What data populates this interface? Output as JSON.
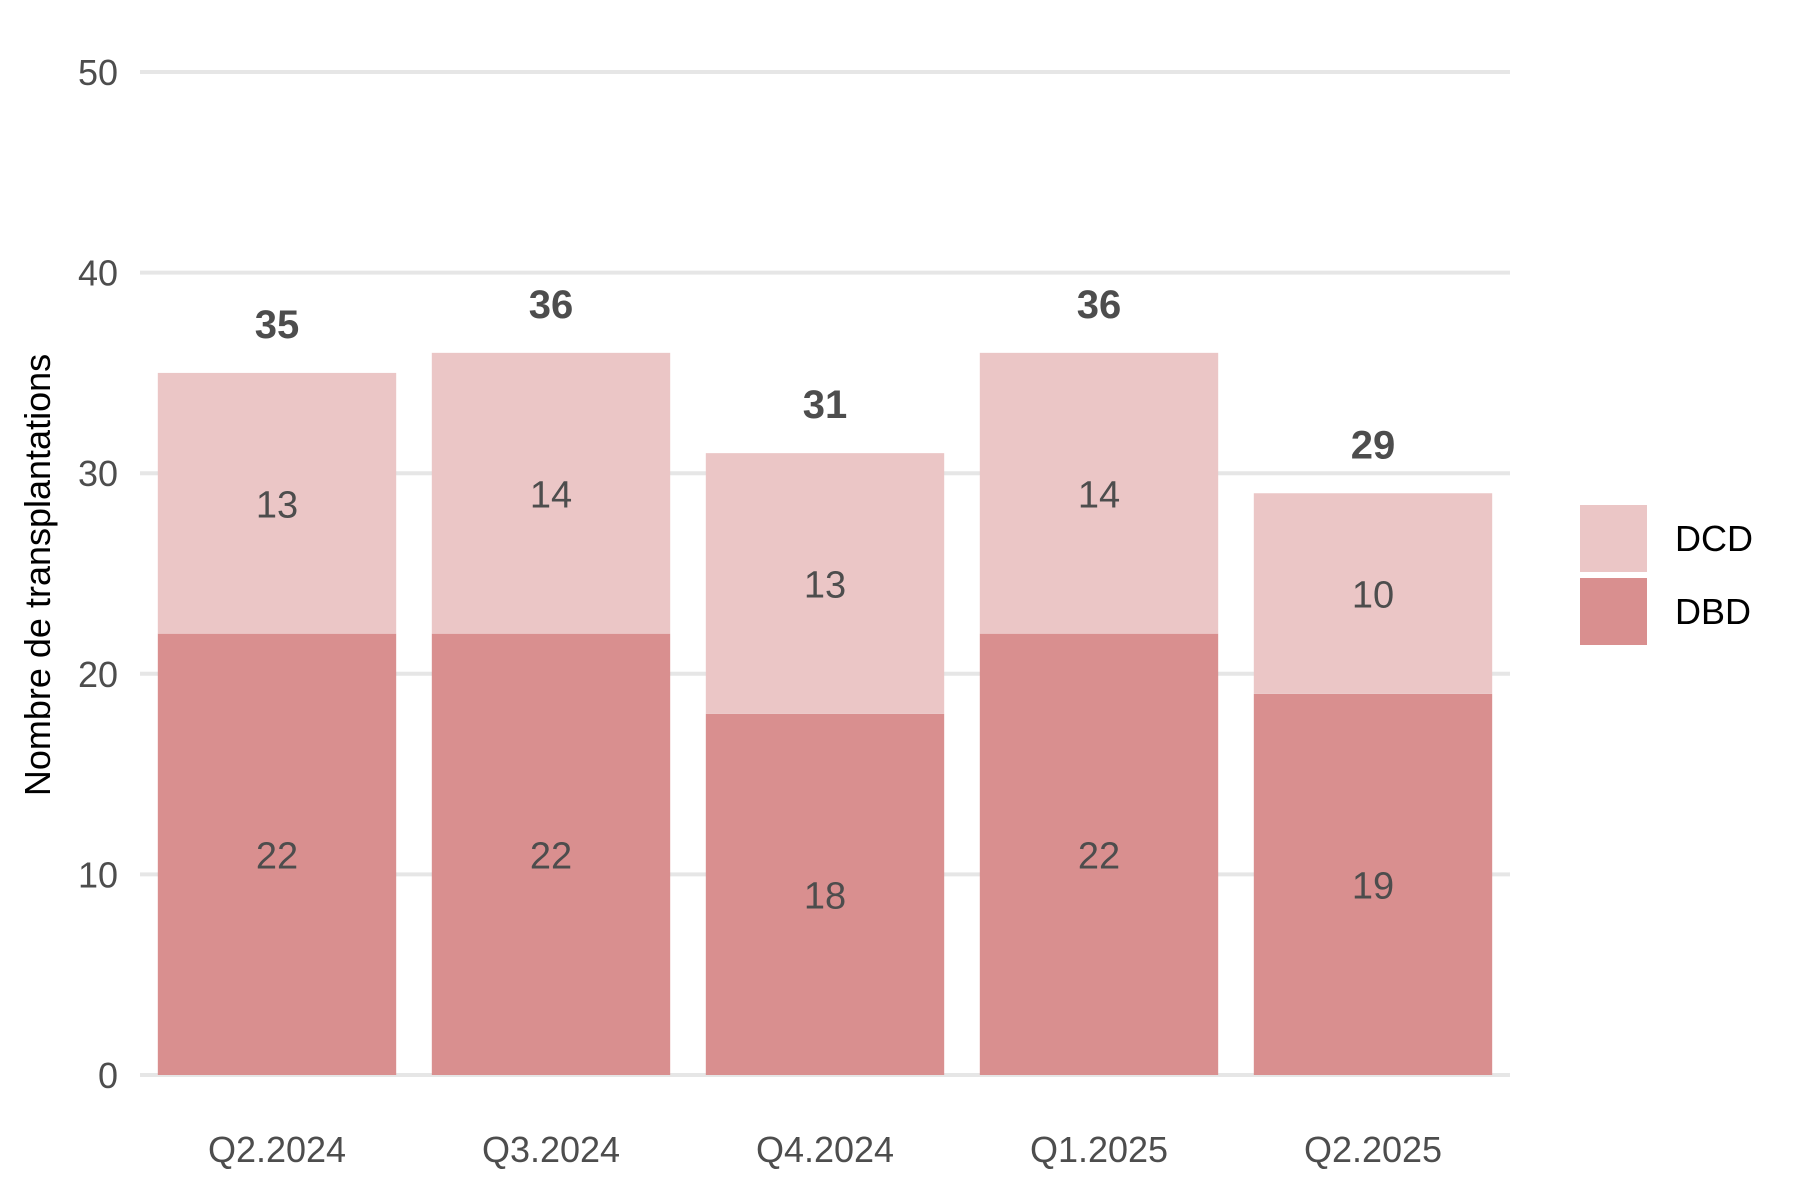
{
  "chart_data": {
    "type": "bar",
    "stacked": true,
    "categories": [
      "Q2.2024",
      "Q3.2024",
      "Q4.2024",
      "Q1.2025",
      "Q2.2025"
    ],
    "series": [
      {
        "name": "DBD",
        "values": [
          22,
          22,
          18,
          22,
          19
        ],
        "color": "#d98f8f"
      },
      {
        "name": "DCD",
        "values": [
          13,
          14,
          13,
          14,
          10
        ],
        "color": "#ebc6c6"
      }
    ],
    "totals": [
      35,
      36,
      31,
      36,
      29
    ],
    "ylabel": "Nombre de transplantations",
    "xlabel": "",
    "ylim": [
      0,
      50
    ],
    "yticks": [
      0,
      10,
      20,
      30,
      40,
      50
    ],
    "grid": "horizontal",
    "legend": {
      "placement": "right",
      "order": [
        "DCD",
        "DBD"
      ]
    }
  }
}
